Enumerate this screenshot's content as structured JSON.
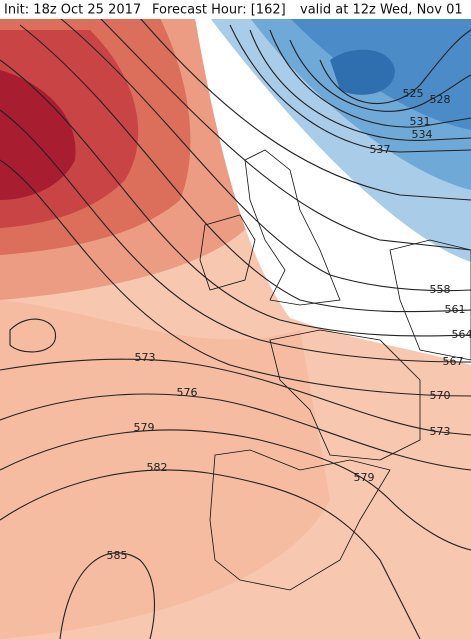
{
  "header": {
    "init": "Init: 18z Oct 25 2017",
    "forecast_hour": "Forecast Hour: [162]",
    "valid": "valid at 12z Wed, Nov 01"
  },
  "contour_labels": [
    "525",
    "528",
    "531",
    "534",
    "537",
    "558",
    "561",
    "564",
    "567",
    "570",
    "573",
    "573",
    "576",
    "579",
    "579",
    "582",
    "585"
  ]
}
